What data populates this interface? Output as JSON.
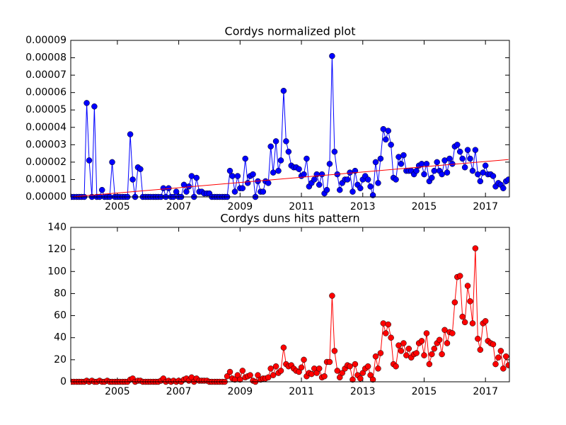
{
  "chart_data": [
    {
      "type": "line",
      "title": "Cordys normalized plot",
      "xlim": [
        2003.48,
        2017.78
      ],
      "xticks": [
        2005,
        2007,
        2009,
        2011,
        2013,
        2015,
        2017
      ],
      "ylim": [
        0,
        9e-05
      ],
      "yticks": [
        {
          "value": 0,
          "label": "0.00000"
        },
        1e-05,
        2e-05,
        3e-05,
        4e-05,
        5e-05,
        6e-05,
        7e-05,
        8e-05,
        9e-05
      ],
      "x": [
        2003.5,
        2003.58,
        2003.67,
        2003.75,
        2003.83,
        2003.92,
        2004,
        2004.08,
        2004.17,
        2004.25,
        2004.33,
        2004.42,
        2004.5,
        2004.58,
        2004.67,
        2004.75,
        2004.83,
        2004.92,
        2005,
        2005.08,
        2005.17,
        2005.25,
        2005.33,
        2005.42,
        2005.5,
        2005.58,
        2005.67,
        2005.75,
        2005.83,
        2005.92,
        2006,
        2006.08,
        2006.17,
        2006.25,
        2006.33,
        2006.42,
        2006.5,
        2006.58,
        2006.67,
        2006.75,
        2006.83,
        2006.92,
        2007,
        2007.08,
        2007.17,
        2007.25,
        2007.33,
        2007.42,
        2007.5,
        2007.58,
        2007.67,
        2007.75,
        2007.83,
        2007.92,
        2008,
        2008.08,
        2008.17,
        2008.25,
        2008.33,
        2008.42,
        2008.5,
        2008.58,
        2008.67,
        2008.75,
        2008.83,
        2008.92,
        2009,
        2009.08,
        2009.17,
        2009.25,
        2009.33,
        2009.42,
        2009.5,
        2009.58,
        2009.67,
        2009.75,
        2009.83,
        2009.92,
        2010,
        2010.08,
        2010.17,
        2010.25,
        2010.33,
        2010.42,
        2010.5,
        2010.58,
        2010.67,
        2010.75,
        2010.83,
        2010.92,
        2011,
        2011.08,
        2011.17,
        2011.25,
        2011.33,
        2011.42,
        2011.5,
        2011.58,
        2011.67,
        2011.75,
        2011.83,
        2011.92,
        2012,
        2012.08,
        2012.17,
        2012.25,
        2012.33,
        2012.42,
        2012.5,
        2012.58,
        2012.67,
        2012.75,
        2012.83,
        2012.92,
        2013,
        2013.08,
        2013.17,
        2013.25,
        2013.33,
        2013.42,
        2013.5,
        2013.58,
        2013.67,
        2013.75,
        2013.83,
        2013.92,
        2014,
        2014.08,
        2014.17,
        2014.25,
        2014.33,
        2014.42,
        2014.5,
        2014.58,
        2014.67,
        2014.75,
        2014.83,
        2014.92,
        2015,
        2015.08,
        2015.17,
        2015.25,
        2015.33,
        2015.42,
        2015.5,
        2015.58,
        2015.67,
        2015.75,
        2015.83,
        2015.92,
        2016,
        2016.08,
        2016.17,
        2016.25,
        2016.33,
        2016.42,
        2016.5,
        2016.58,
        2016.67,
        2016.75,
        2016.83,
        2016.92,
        2017,
        2017.08,
        2017.17,
        2017.25,
        2017.33,
        2017.42,
        2017.5,
        2017.58,
        2017.67,
        2017.75
      ],
      "series": [
        {
          "color": "#0000ff",
          "marker": true,
          "values": [
            0,
            0,
            0,
            0,
            0,
            0,
            5.4e-05,
            2.1e-05,
            0,
            5.2e-05,
            0,
            0,
            4e-06,
            0,
            0,
            0,
            2e-05,
            0,
            0,
            0,
            0,
            0,
            0,
            3.6e-05,
            1e-05,
            0,
            1.7e-05,
            1.6e-05,
            0,
            0,
            0,
            0,
            0,
            0,
            0,
            0,
            5e-06,
            0,
            5e-06,
            0,
            0,
            3e-06,
            0,
            0,
            7e-06,
            3e-06,
            6e-06,
            1.2e-05,
            0,
            1.1e-05,
            3e-06,
            3e-06,
            2e-06,
            2e-06,
            2e-06,
            0,
            0,
            0,
            0,
            0,
            0,
            0,
            1.5e-05,
            1.2e-05,
            3e-06,
            1.2e-05,
            5e-06,
            5e-06,
            2.2e-05,
            8e-06,
            1.2e-05,
            1.3e-05,
            0,
            9e-06,
            3e-06,
            3e-06,
            9e-06,
            8e-06,
            2.9e-05,
            1.4e-05,
            3.2e-05,
            1.5e-05,
            2.1e-05,
            6.1e-05,
            3.2e-05,
            2.6e-05,
            1.8e-05,
            1.7e-05,
            1.7e-05,
            1.6e-05,
            1.2e-05,
            1.3e-05,
            2.2e-05,
            6e-06,
            8e-06,
            1e-05,
            1.3e-05,
            7e-06,
            1.3e-05,
            2e-06,
            4e-06,
            1.9e-05,
            8.1e-05,
            2.6e-05,
            1.3e-05,
            4e-06,
            8e-06,
            1e-05,
            1e-05,
            1.4e-05,
            3e-06,
            1.5e-05,
            7e-06,
            5e-06,
            1e-05,
            1.2e-05,
            1e-05,
            6e-06,
            1e-06,
            2e-05,
            8e-06,
            2.2e-05,
            3.9e-05,
            3.3e-05,
            3.8e-05,
            3e-05,
            1.1e-05,
            1e-05,
            2.3e-05,
            1.9e-05,
            2.4e-05,
            1.5e-05,
            1.5e-05,
            1.5e-05,
            1.3e-05,
            1.5e-05,
            1.8e-05,
            1.9e-05,
            1.3e-05,
            1.9e-05,
            9e-06,
            1.1e-05,
            1.5e-05,
            2e-05,
            1.5e-05,
            1.3e-05,
            2.1e-05,
            1.4e-05,
            2.2e-05,
            1.9e-05,
            2.9e-05,
            3e-05,
            2.6e-05,
            2.2e-05,
            1.7e-05,
            2.7e-05,
            2.2e-05,
            1.5e-05,
            2.7e-05,
            1.3e-05,
            9e-06,
            1.4e-05,
            1.8e-05,
            1.3e-05,
            1.3e-05,
            1.2e-05,
            6e-06,
            8e-06,
            7e-06,
            5e-06,
            9e-06,
            1e-05
          ]
        },
        {
          "color": "#ff0000",
          "marker": false,
          "x": [
            2003.5,
            2017.75
          ],
          "values": [
            0,
            2.15e-05
          ]
        }
      ]
    },
    {
      "type": "line",
      "title": "Cordys duns hits pattern",
      "xlim": [
        2003.48,
        2017.78
      ],
      "xticks": [
        2005,
        2007,
        2009,
        2011,
        2013,
        2015,
        2017
      ],
      "ylim": [
        0,
        140
      ],
      "yticks": [
        0,
        20,
        40,
        60,
        80,
        100,
        120,
        140
      ],
      "x": [
        2003.5,
        2003.58,
        2003.67,
        2003.75,
        2003.83,
        2003.92,
        2004,
        2004.08,
        2004.17,
        2004.25,
        2004.33,
        2004.42,
        2004.5,
        2004.58,
        2004.67,
        2004.75,
        2004.83,
        2004.92,
        2005,
        2005.08,
        2005.17,
        2005.25,
        2005.33,
        2005.42,
        2005.5,
        2005.58,
        2005.67,
        2005.75,
        2005.83,
        2005.92,
        2006,
        2006.08,
        2006.17,
        2006.25,
        2006.33,
        2006.42,
        2006.5,
        2006.58,
        2006.67,
        2006.75,
        2006.83,
        2006.92,
        2007,
        2007.08,
        2007.17,
        2007.25,
        2007.33,
        2007.42,
        2007.5,
        2007.58,
        2007.67,
        2007.75,
        2007.83,
        2007.92,
        2008,
        2008.08,
        2008.17,
        2008.25,
        2008.33,
        2008.42,
        2008.5,
        2008.58,
        2008.67,
        2008.75,
        2008.83,
        2008.92,
        2009,
        2009.08,
        2009.17,
        2009.25,
        2009.33,
        2009.42,
        2009.5,
        2009.58,
        2009.67,
        2009.75,
        2009.83,
        2009.92,
        2010,
        2010.08,
        2010.17,
        2010.25,
        2010.33,
        2010.42,
        2010.5,
        2010.58,
        2010.67,
        2010.75,
        2010.83,
        2010.92,
        2011,
        2011.08,
        2011.17,
        2011.25,
        2011.33,
        2011.42,
        2011.5,
        2011.58,
        2011.67,
        2011.75,
        2011.83,
        2011.92,
        2012,
        2012.08,
        2012.17,
        2012.25,
        2012.33,
        2012.42,
        2012.5,
        2012.58,
        2012.67,
        2012.75,
        2012.83,
        2012.92,
        2013,
        2013.08,
        2013.17,
        2013.25,
        2013.33,
        2013.42,
        2013.5,
        2013.58,
        2013.67,
        2013.75,
        2013.83,
        2013.92,
        2014,
        2014.08,
        2014.17,
        2014.25,
        2014.33,
        2014.42,
        2014.5,
        2014.58,
        2014.67,
        2014.75,
        2014.83,
        2014.92,
        2015,
        2015.08,
        2015.17,
        2015.25,
        2015.33,
        2015.42,
        2015.5,
        2015.58,
        2015.67,
        2015.75,
        2015.83,
        2015.92,
        2016,
        2016.08,
        2016.17,
        2016.25,
        2016.33,
        2016.42,
        2016.5,
        2016.58,
        2016.67,
        2016.75,
        2016.83,
        2016.92,
        2017,
        2017.08,
        2017.17,
        2017.25,
        2017.33,
        2017.42,
        2017.5,
        2017.58,
        2017.67,
        2017.75
      ],
      "series": [
        {
          "color": "#ff0000",
          "marker": true,
          "values": [
            0,
            0,
            0,
            0,
            0,
            0,
            1,
            0,
            1,
            0,
            0,
            1,
            0,
            0,
            1,
            0,
            0,
            0,
            0,
            0,
            0,
            0,
            0,
            2,
            3,
            0,
            1,
            1,
            0,
            0,
            0,
            0,
            0,
            0,
            0,
            1,
            3,
            0,
            1,
            0,
            1,
            0,
            1,
            0,
            2,
            3,
            1,
            4,
            0,
            3,
            1,
            1,
            1,
            1,
            0,
            0,
            0,
            0,
            0,
            0,
            0,
            5,
            9,
            3,
            2,
            6,
            2,
            10,
            4,
            5,
            6,
            1,
            0,
            6,
            2,
            3,
            3,
            4,
            12,
            6,
            14,
            8,
            10,
            31,
            16,
            14,
            15,
            12,
            10,
            9,
            13,
            20,
            5,
            8,
            7,
            12,
            8,
            12,
            4,
            5,
            18,
            18,
            78,
            28,
            10,
            4,
            8,
            12,
            15,
            14,
            2,
            16,
            6,
            3,
            8,
            12,
            14,
            6,
            2,
            23,
            12,
            26,
            53,
            44,
            52,
            40,
            16,
            14,
            33,
            28,
            35,
            24,
            30,
            22,
            25,
            26,
            35,
            37,
            24,
            44,
            16,
            25,
            30,
            35,
            38,
            25,
            47,
            35,
            45,
            44,
            72,
            95,
            96,
            59,
            54,
            87,
            73,
            53,
            121,
            39,
            29,
            53,
            55,
            37,
            35,
            34,
            16,
            22,
            28,
            12,
            23,
            15
          ]
        }
      ]
    }
  ]
}
